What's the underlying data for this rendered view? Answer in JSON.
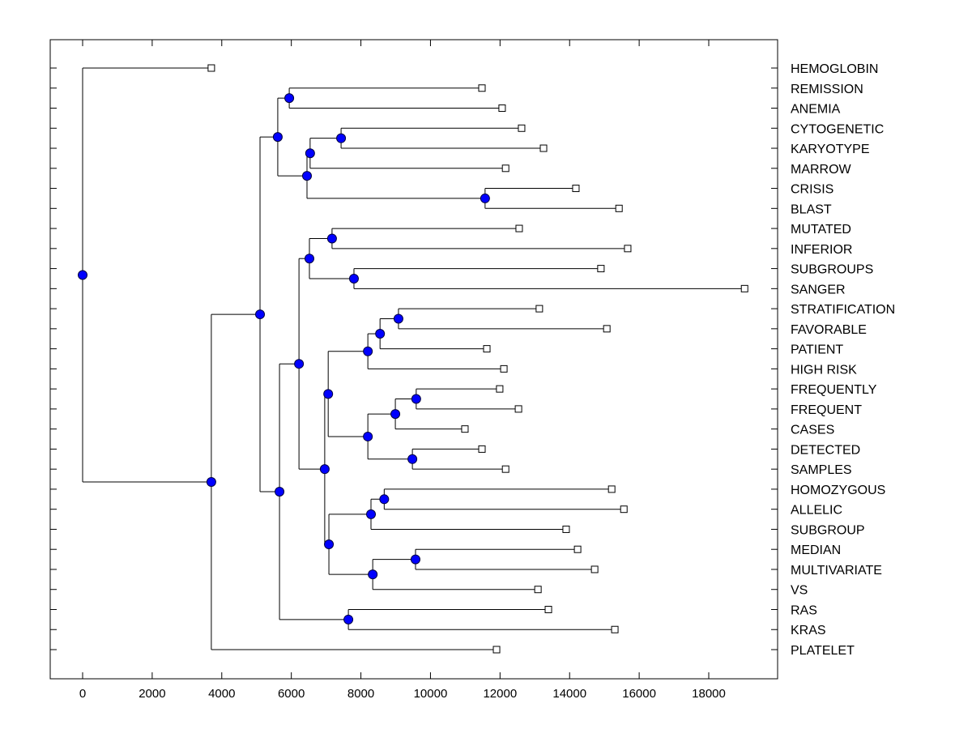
{
  "chart_data": {
    "type": "dendrogram",
    "title": "",
    "xlabel": "",
    "ylabel": "",
    "xlim": [
      -900,
      19900
    ],
    "x_ticks": [
      0,
      2000,
      4000,
      6000,
      8000,
      10000,
      12000,
      14000,
      16000,
      18000
    ],
    "x_tick_labels": [
      "0",
      "2000",
      "4000",
      "6000",
      "8000",
      "10000",
      "12000",
      "14000",
      "16000",
      "18000"
    ],
    "grid": false,
    "legend": "none",
    "colors": {
      "internal_node": "#0000ff",
      "leaf_node": "#ffffff",
      "line": "#000000"
    },
    "leaves": [
      {
        "label": "HEMOGLOBIN",
        "value": 3700
      },
      {
        "label": "REMISSION",
        "value": 11480
      },
      {
        "label": "ANEMIA",
        "value": 12060
      },
      {
        "label": "CYTOGENETIC",
        "value": 12620
      },
      {
        "label": "KARYOTYPE",
        "value": 13250
      },
      {
        "label": "MARROW",
        "value": 12160
      },
      {
        "label": "CRISIS",
        "value": 14180
      },
      {
        "label": "BLAST",
        "value": 15420
      },
      {
        "label": "MUTATED",
        "value": 12550
      },
      {
        "label": "INFERIOR",
        "value": 15670
      },
      {
        "label": "SUBGROUPS",
        "value": 14900
      },
      {
        "label": "SANGER",
        "value": 19030
      },
      {
        "label": "STRATIFICATION",
        "value": 13130
      },
      {
        "label": "FAVORABLE",
        "value": 15070
      },
      {
        "label": "PATIENT",
        "value": 11620
      },
      {
        "label": "HIGH RISK",
        "value": 12110
      },
      {
        "label": "FREQUENTLY",
        "value": 11990
      },
      {
        "label": "FREQUENT",
        "value": 12530
      },
      {
        "label": "CASES",
        "value": 10990
      },
      {
        "label": "DETECTED",
        "value": 11480
      },
      {
        "label": "SAMPLES",
        "value": 12160
      },
      {
        "label": "HOMOZYGOUS",
        "value": 15210
      },
      {
        "label": "ALLELIC",
        "value": 15560
      },
      {
        "label": "SUBGROUP",
        "value": 13900
      },
      {
        "label": "MEDIAN",
        "value": 14230
      },
      {
        "label": "MULTIVARIATE",
        "value": 14720
      },
      {
        "label": "VS",
        "value": 13090
      },
      {
        "label": "RAS",
        "value": 13390
      },
      {
        "label": "KRAS",
        "value": 15300
      },
      {
        "label": "PLATELET",
        "value": 11900
      }
    ],
    "tree": {
      "value": 0,
      "children": [
        {
          "leaf": 0
        },
        {
          "value": 3700,
          "children": [
            {
              "value": 5100,
              "children": [
                {
                  "value": 5610,
                  "children": [
                    {
                      "value": 5940,
                      "children": [
                        {
                          "leaf": 1
                        },
                        {
                          "leaf": 2
                        }
                      ]
                    },
                    {
                      "value": 6450,
                      "children": [
                        {
                          "value": 6540,
                          "children": [
                            {
                              "value": 7430,
                              "children": [
                                {
                                  "leaf": 3
                                },
                                {
                                  "leaf": 4
                                }
                              ]
                            },
                            {
                              "leaf": 5
                            }
                          ]
                        },
                        {
                          "value": 11570,
                          "children": [
                            {
                              "leaf": 6
                            },
                            {
                              "leaf": 7
                            }
                          ]
                        }
                      ]
                    }
                  ]
                },
                {
                  "value": 5660,
                  "children": [
                    {
                      "value": 6220,
                      "children": [
                        {
                          "value": 6520,
                          "children": [
                            {
                              "value": 7170,
                              "children": [
                                {
                                  "leaf": 8
                                },
                                {
                                  "leaf": 9
                                }
                              ]
                            },
                            {
                              "value": 7800,
                              "children": [
                                {
                                  "leaf": 10
                                },
                                {
                                  "leaf": 11
                                }
                              ]
                            }
                          ]
                        },
                        {
                          "value": 6960,
                          "children": [
                            {
                              "value": 7060,
                              "children": [
                                {
                                  "value": 8200,
                                  "children": [
                                    {
                                      "value": 8550,
                                      "children": [
                                        {
                                          "value": 9080,
                                          "children": [
                                            {
                                              "leaf": 12
                                            },
                                            {
                                              "leaf": 13
                                            }
                                          ]
                                        },
                                        {
                                          "leaf": 14
                                        }
                                      ]
                                    },
                                    {
                                      "leaf": 15
                                    }
                                  ]
                                },
                                {
                                  "value": 8200,
                                  "children": [
                                    {
                                      "value": 8990,
                                      "children": [
                                        {
                                          "value": 9590,
                                          "children": [
                                            {
                                              "leaf": 16
                                            },
                                            {
                                              "leaf": 17
                                            }
                                          ]
                                        },
                                        {
                                          "leaf": 18
                                        }
                                      ]
                                    },
                                    {
                                      "value": 9480,
                                      "children": [
                                        {
                                          "leaf": 19
                                        },
                                        {
                                          "leaf": 20
                                        }
                                      ]
                                    }
                                  ]
                                }
                              ]
                            },
                            {
                              "value": 7080,
                              "children": [
                                {
                                  "value": 8290,
                                  "children": [
                                    {
                                      "value": 8670,
                                      "children": [
                                        {
                                          "leaf": 21
                                        },
                                        {
                                          "leaf": 22
                                        }
                                      ]
                                    },
                                    {
                                      "leaf": 23
                                    }
                                  ]
                                },
                                {
                                  "value": 8340,
                                  "children": [
                                    {
                                      "value": 9570,
                                      "children": [
                                        {
                                          "leaf": 24
                                        },
                                        {
                                          "leaf": 25
                                        }
                                      ]
                                    },
                                    {
                                      "leaf": 26
                                    }
                                  ]
                                }
                              ]
                            }
                          ]
                        }
                      ]
                    },
                    {
                      "value": 7640,
                      "children": [
                        {
                          "leaf": 27
                        },
                        {
                          "leaf": 28
                        }
                      ]
                    }
                  ]
                }
              ]
            },
            {
              "leaf": 29
            }
          ]
        }
      ]
    }
  }
}
